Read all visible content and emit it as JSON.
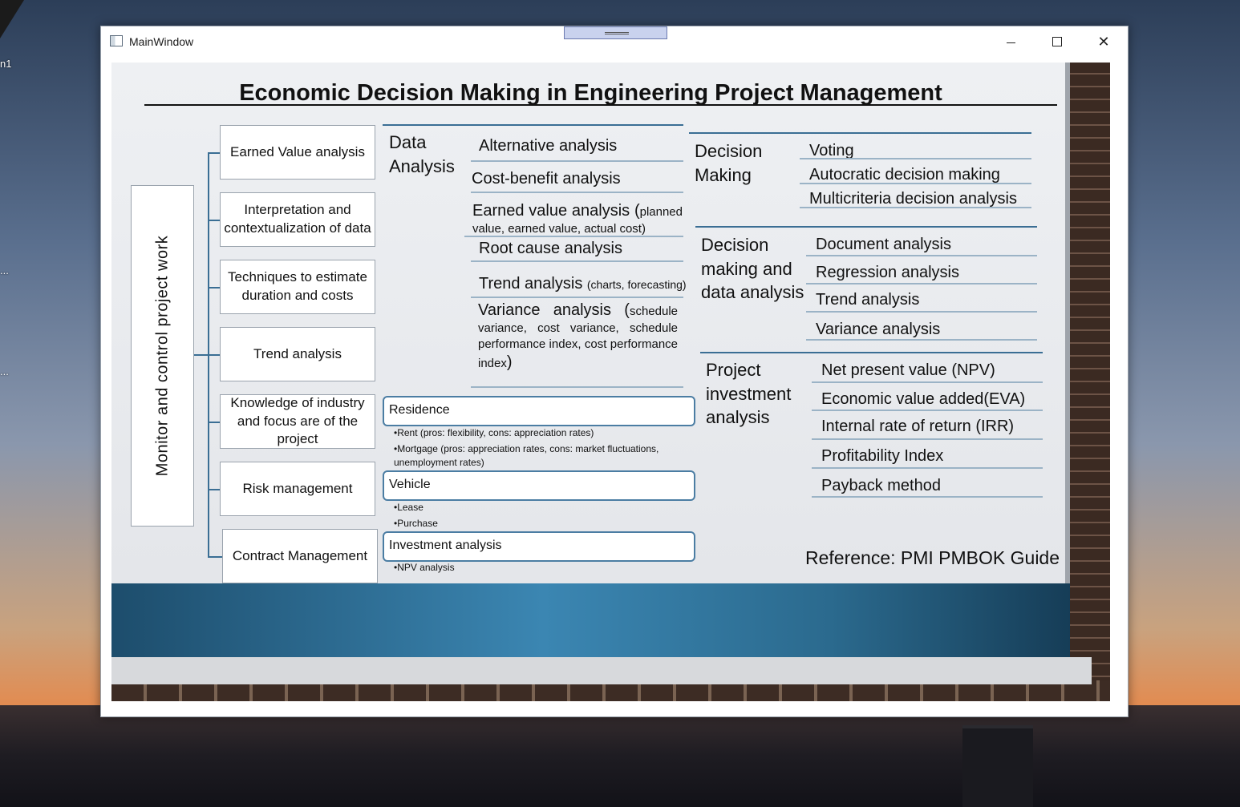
{
  "desktop": {
    "labels": [
      "n1",
      "...",
      "..."
    ]
  },
  "window": {
    "title": "MainWindow"
  },
  "slide": {
    "title": "Economic Decision Making in Engineering Project Management",
    "vertical_label": "Monitor and control project work",
    "left_boxes": [
      "Earned Value analysis",
      "Interpretation and contextualization of data",
      "Techniques to estimate duration and costs",
      "Trend analysis",
      "Knowledge of industry and focus are of the project",
      "Risk management",
      "Contract Management"
    ],
    "data_analysis": {
      "heading": "Data Analysis",
      "items": {
        "alternative": "Alternative analysis",
        "cost_benefit": "Cost-benefit analysis",
        "earned_value_main": "Earned value analysis (",
        "earned_value_detail": "planned value, earned value, actual cost)",
        "root_cause": "Root cause analysis",
        "trend_main": "Trend analysis ",
        "trend_detail": "(charts, forecasting)",
        "variance_main": "Variance analysis (",
        "variance_detail": "schedule variance, cost variance, schedule performance index, cost performance index",
        "variance_close": ")"
      }
    },
    "boxes": {
      "residence": {
        "label": "Residence",
        "bullets": [
          "•Rent (pros: flexibility, cons: appreciation rates)",
          "•Mortgage (pros: appreciation rates, cons: market fluctuations, unemployment rates)"
        ]
      },
      "vehicle": {
        "label": "Vehicle",
        "bullets": [
          "•Lease",
          "•Purchase"
        ]
      },
      "investment": {
        "label": "Investment analysis",
        "bullets": [
          "•NPV analysis"
        ]
      }
    },
    "decision_making": {
      "heading": "Decision Making",
      "items": [
        "Voting",
        "Autocratic decision making",
        "Multicriteria decision analysis"
      ]
    },
    "decision_data": {
      "heading": "Decision making and data analysis",
      "items": [
        "Document analysis",
        "Regression analysis",
        "Trend analysis",
        "Variance analysis"
      ]
    },
    "project_investment": {
      "heading": "Project investment analysis",
      "items": [
        "Net present value (NPV)",
        "Economic value added(EVA)",
        "Internal rate of return (IRR)",
        "Profitability Index",
        "Payback method"
      ]
    },
    "reference": "Reference: PMI PMBOK Guide"
  },
  "colors": {
    "accent": "#3a6e94",
    "band": "#3b86b2"
  }
}
